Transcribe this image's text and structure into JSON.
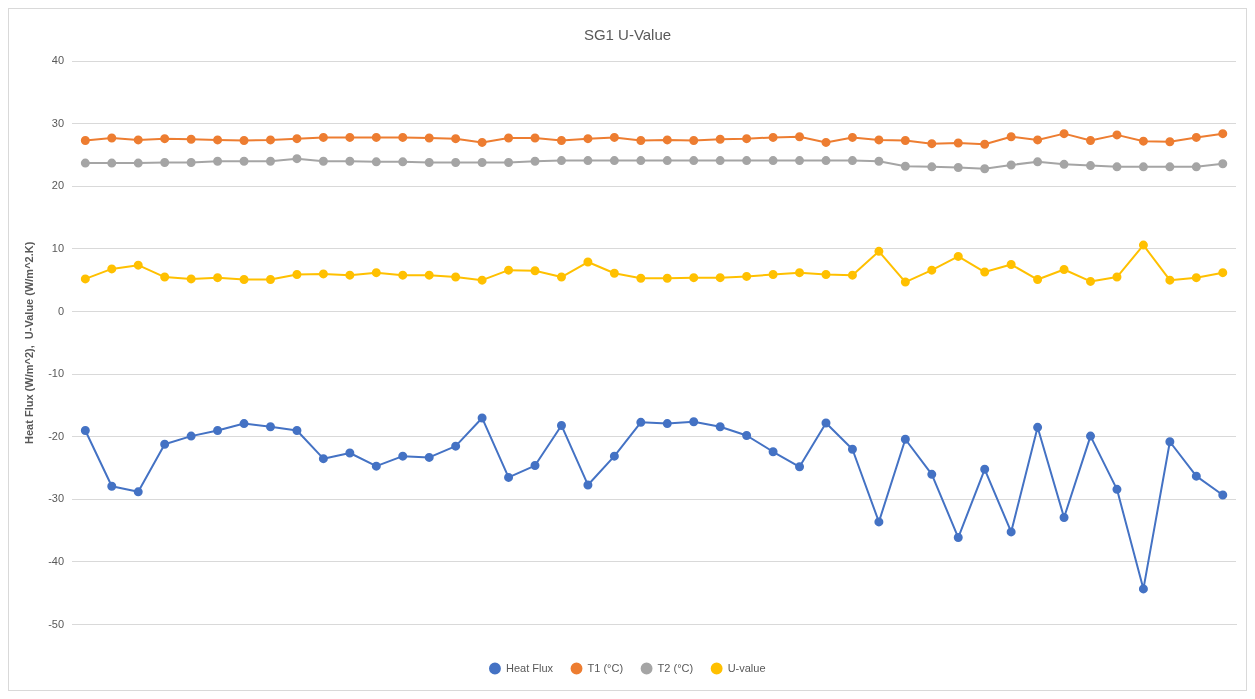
{
  "chart_data": {
    "type": "line",
    "title": "SG1 U-Value",
    "ylabel": "Heat Flux (W/m^2),  U-Value (W/m^2.K)",
    "categories": [
      null,
      null,
      null,
      null,
      null,
      null,
      null,
      null,
      null,
      null,
      null,
      null,
      null,
      null,
      null,
      null,
      null,
      null,
      null,
      null,
      null,
      null,
      null,
      null,
      null,
      null,
      null,
      null,
      null,
      null,
      null,
      null,
      null,
      null,
      null,
      null,
      null,
      null,
      null,
      null,
      null,
      null,
      null,
      null
    ],
    "series": [
      {
        "name": "Heat Flux",
        "color": "#4472c4",
        "values": [
          -19.0,
          -27.9,
          -28.8,
          -21.2,
          -19.9,
          -19.0,
          -17.9,
          -18.4,
          -19.0,
          -23.5,
          -22.6,
          -24.7,
          -23.1,
          -23.3,
          -21.5,
          -17.0,
          -26.5,
          -24.6,
          -18.2,
          -27.7,
          -23.1,
          -17.7,
          -17.9,
          -17.6,
          -18.4,
          -19.8,
          -22.4,
          -24.8,
          -17.8,
          -22.0,
          -33.6,
          -20.4,
          -26.0,
          -36.1,
          -25.2,
          -35.2,
          -18.5,
          -32.9,
          -19.9,
          -28.4,
          -44.3,
          -20.8,
          -26.3,
          -29.3
        ]
      },
      {
        "name": "T1 (°C)",
        "color": "#ed7d31",
        "values": [
          27.3,
          27.7,
          27.4,
          27.6,
          27.5,
          27.4,
          27.3,
          27.4,
          27.6,
          27.8,
          27.8,
          27.8,
          27.8,
          27.7,
          27.6,
          27.0,
          27.7,
          27.7,
          27.3,
          27.6,
          27.8,
          27.3,
          27.4,
          27.3,
          27.5,
          27.6,
          27.8,
          27.9,
          27.0,
          27.8,
          27.4,
          27.3,
          26.8,
          26.9,
          26.7,
          27.9,
          27.4,
          28.4,
          27.3,
          28.2,
          27.2,
          27.1,
          27.8,
          28.4
        ]
      },
      {
        "name": "T2 (°C)",
        "color": "#a5a5a5",
        "values": [
          23.7,
          23.7,
          23.7,
          23.8,
          23.8,
          24.0,
          24.0,
          24.0,
          24.4,
          24.0,
          24.0,
          23.9,
          23.9,
          23.8,
          23.8,
          23.8,
          23.8,
          24.0,
          24.1,
          24.1,
          24.1,
          24.1,
          24.1,
          24.1,
          24.1,
          24.1,
          24.1,
          24.1,
          24.1,
          24.1,
          24.0,
          23.2,
          23.1,
          23.0,
          22.8,
          23.4,
          23.9,
          23.5,
          23.3,
          23.1,
          23.1,
          23.1,
          23.1,
          23.6
        ]
      },
      {
        "name": "U-value",
        "color": "#ffc000",
        "values": [
          5.2,
          6.8,
          7.4,
          5.5,
          5.2,
          5.4,
          5.1,
          5.1,
          5.9,
          6.0,
          5.8,
          6.2,
          5.8,
          5.8,
          5.5,
          5.0,
          6.6,
          6.5,
          5.5,
          7.9,
          6.1,
          5.3,
          5.3,
          5.4,
          5.4,
          5.6,
          5.9,
          6.2,
          5.9,
          5.8,
          9.6,
          4.7,
          6.6,
          8.8,
          6.3,
          7.5,
          5.1,
          6.7,
          4.8,
          5.5,
          10.6,
          5.0,
          5.4,
          6.2
        ]
      }
    ],
    "ylim": [
      -50,
      40
    ],
    "yticks": [
      -50,
      -40,
      -30,
      -20,
      -10,
      0,
      10,
      20,
      30,
      40
    ],
    "grid": "y",
    "legend": "bottom",
    "marker": "circle",
    "line_style": "solid"
  }
}
